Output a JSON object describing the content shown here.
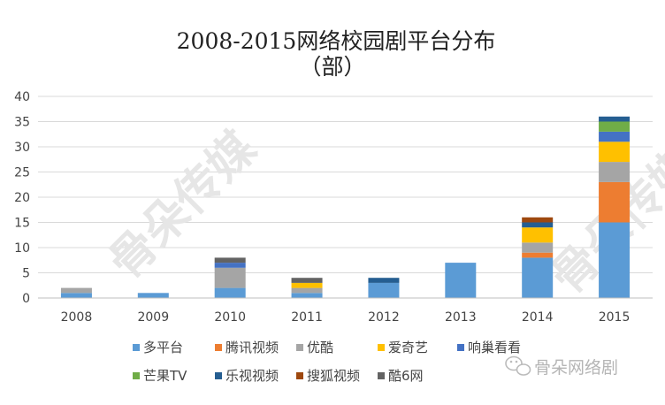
{
  "chart_data": {
    "type": "bar",
    "stacked": true,
    "title": "2008-2015网络校园剧平台分布",
    "subtitle": "（部）",
    "xlabel": "",
    "ylabel": "",
    "ylim": [
      0,
      40
    ],
    "yticks": [
      0,
      5,
      10,
      15,
      20,
      25,
      30,
      35,
      40
    ],
    "grid": true,
    "legend_position": "bottom",
    "categories": [
      "2008",
      "2009",
      "2010",
      "2011",
      "2012",
      "2013",
      "2014",
      "2015"
    ],
    "series": [
      {
        "name": "多平台",
        "color": "#5B9BD5",
        "values": [
          1,
          1,
          2,
          1,
          3,
          7,
          8,
          15
        ]
      },
      {
        "name": "腾讯视频",
        "color": "#ED7D31",
        "values": [
          0,
          0,
          0,
          0,
          0,
          0,
          1,
          8
        ]
      },
      {
        "name": "优酷",
        "color": "#A5A5A5",
        "values": [
          1,
          0,
          4,
          1,
          0,
          0,
          2,
          4
        ]
      },
      {
        "name": "爱奇艺",
        "color": "#FFC000",
        "values": [
          0,
          0,
          0,
          1,
          0,
          0,
          3,
          4
        ]
      },
      {
        "name": "响巢看看",
        "color": "#4472C4",
        "values": [
          0,
          0,
          1,
          0,
          0,
          0,
          0,
          2
        ]
      },
      {
        "name": "芒果TV",
        "color": "#70AD47",
        "values": [
          0,
          0,
          0,
          0,
          0,
          0,
          0,
          2
        ]
      },
      {
        "name": "乐视视频",
        "color": "#255E91",
        "values": [
          0,
          0,
          0,
          0,
          1,
          0,
          1,
          1
        ]
      },
      {
        "name": "搜狐视频",
        "color": "#9E480E",
        "values": [
          0,
          0,
          0,
          0,
          0,
          0,
          1,
          0
        ]
      },
      {
        "name": "酷6网",
        "color": "#636363",
        "values": [
          0,
          0,
          1,
          1,
          0,
          0,
          0,
          0
        ]
      }
    ]
  },
  "watermark": {
    "text": "骨朵传媒",
    "account_label": "骨朵网络剧",
    "icon": "wechat-icon"
  }
}
